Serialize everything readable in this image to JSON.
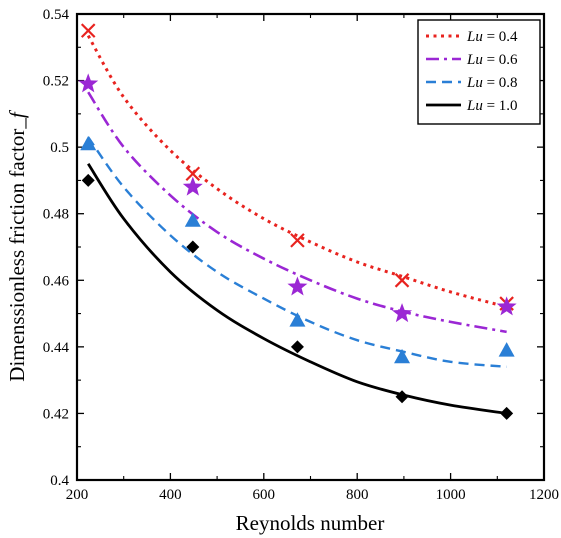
{
  "chart_data": {
    "type": "scatter",
    "xlabel": "Reynolds number",
    "ylabel": "Dimenssionless friction factor_",
    "ylabel_italic": "f",
    "xlim": [
      200,
      1200
    ],
    "ylim": [
      0.4,
      0.54
    ],
    "xticks": [
      200,
      400,
      600,
      800,
      1000,
      1200
    ],
    "xtick_labels": [
      "200",
      "400",
      "600",
      "800",
      "1000",
      "1200"
    ],
    "yticks": [
      0.4,
      0.42,
      0.44,
      0.46,
      0.48,
      0.5,
      0.52,
      0.54
    ],
    "ytick_labels": [
      "0.4",
      "0.42",
      "0.44",
      "0.46",
      "0.48",
      "0.5",
      "0.52",
      "0.54"
    ],
    "grid": false,
    "legend_position": "top-right",
    "series": [
      {
        "name_italic": "Lu",
        "name_suffix": " = 0.4",
        "color": "#e8231f",
        "marker": "x",
        "line_style": "dotted",
        "points": [
          [
            224,
            0.535
          ],
          [
            448,
            0.492
          ],
          [
            672,
            0.472
          ],
          [
            896,
            0.46
          ],
          [
            1120,
            0.453
          ]
        ],
        "fit": [
          [
            224,
            0.5335
          ],
          [
            300,
            0.515
          ],
          [
            400,
            0.499
          ],
          [
            500,
            0.4875
          ],
          [
            600,
            0.4785
          ],
          [
            700,
            0.4715
          ],
          [
            800,
            0.4655
          ],
          [
            900,
            0.461
          ],
          [
            1000,
            0.4565
          ],
          [
            1120,
            0.452
          ]
        ]
      },
      {
        "name_italic": "Lu",
        "name_suffix": " = 0.6",
        "color": "#9b27d4",
        "marker": "star",
        "line_style": "dashdot",
        "points": [
          [
            224,
            0.519
          ],
          [
            448,
            0.488
          ],
          [
            672,
            0.458
          ],
          [
            896,
            0.45
          ],
          [
            1120,
            0.452
          ]
        ],
        "fit": [
          [
            224,
            0.5165
          ],
          [
            300,
            0.5
          ],
          [
            400,
            0.4855
          ],
          [
            500,
            0.4745
          ],
          [
            600,
            0.4665
          ],
          [
            700,
            0.46
          ],
          [
            800,
            0.4545
          ],
          [
            900,
            0.4505
          ],
          [
            1000,
            0.4475
          ],
          [
            1120,
            0.4445
          ]
        ]
      },
      {
        "name_italic": "Lu",
        "name_suffix": " = 0.8",
        "color": "#2a7fd6",
        "marker": "triangle",
        "line_style": "dashed",
        "points": [
          [
            224,
            0.501
          ],
          [
            448,
            0.478
          ],
          [
            672,
            0.448
          ],
          [
            896,
            0.437
          ],
          [
            1120,
            0.439
          ]
        ],
        "fit": [
          [
            224,
            0.503
          ],
          [
            300,
            0.488
          ],
          [
            400,
            0.4735
          ],
          [
            500,
            0.4625
          ],
          [
            600,
            0.4545
          ],
          [
            700,
            0.4475
          ],
          [
            800,
            0.442
          ],
          [
            900,
            0.4385
          ],
          [
            1000,
            0.4355
          ],
          [
            1120,
            0.434
          ]
        ]
      },
      {
        "name_italic": "Lu",
        "name_suffix": " = 1.0",
        "color": "#000000",
        "marker": "diamond",
        "line_style": "solid",
        "points": [
          [
            224,
            0.49
          ],
          [
            448,
            0.47
          ],
          [
            672,
            0.44
          ],
          [
            896,
            0.425
          ],
          [
            1120,
            0.42
          ]
        ],
        "fit": [
          [
            224,
            0.495
          ],
          [
            300,
            0.4785
          ],
          [
            400,
            0.4625
          ],
          [
            500,
            0.451
          ],
          [
            600,
            0.4425
          ],
          [
            700,
            0.4355
          ],
          [
            800,
            0.4295
          ],
          [
            900,
            0.4255
          ],
          [
            1000,
            0.4225
          ],
          [
            1120,
            0.42
          ]
        ]
      }
    ]
  }
}
